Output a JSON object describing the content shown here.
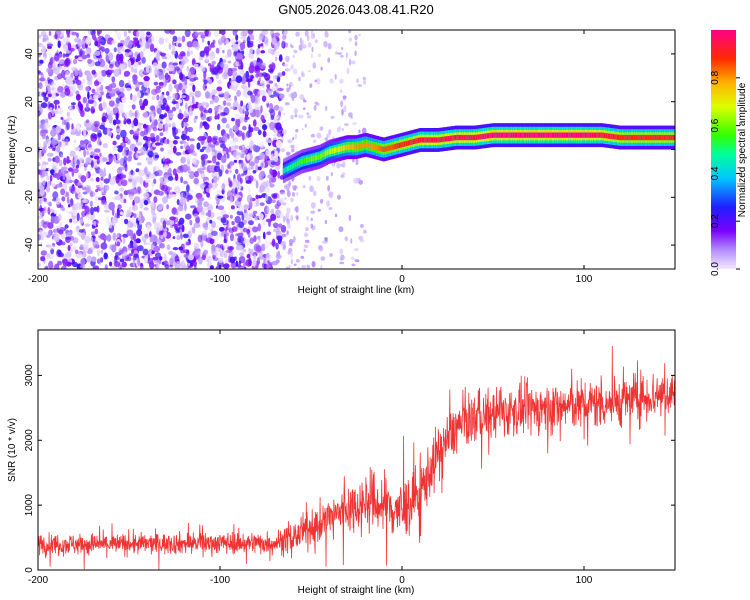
{
  "title": "GN05.2026.043.08.41.R20",
  "chart_data": [
    {
      "type": "heatmap",
      "xlabel": "Height of straight line (km)",
      "ylabel": "Frequency (Hz)",
      "xlim": [
        -200,
        150
      ],
      "ylim": [
        -50,
        50
      ],
      "xticks": [
        -200,
        -100,
        0,
        100
      ],
      "yticks": [
        -40,
        -20,
        0,
        20,
        40
      ],
      "colorbar": {
        "label": "Normalized spectral amplitude",
        "range": [
          0,
          1
        ],
        "ticks": [
          "0.0",
          "0.2",
          "0.4",
          "0.6",
          "0.8"
        ]
      },
      "noise_region_x": [
        -200,
        -65
      ],
      "scattered_region_x": [
        -65,
        -20
      ],
      "tone_track": {
        "x": [
          -65,
          -60,
          -55,
          -50,
          -45,
          -40,
          -35,
          -30,
          -25,
          -20,
          -15,
          -10,
          -5,
          0,
          5,
          10,
          20,
          30,
          40,
          50,
          60,
          80,
          100,
          110,
          120,
          130,
          140,
          150
        ],
        "freq": [
          -9,
          -7,
          -5,
          -4,
          -3,
          -1,
          0,
          1,
          1,
          2,
          1,
          0,
          1,
          2,
          3,
          4,
          4,
          5,
          5,
          6,
          6,
          6,
          6,
          6,
          5,
          5,
          5,
          5
        ],
        "amp": [
          0.45,
          0.5,
          0.55,
          0.6,
          0.6,
          0.65,
          0.7,
          0.75,
          0.8,
          0.8,
          0.8,
          0.85,
          0.85,
          0.9,
          0.9,
          0.95,
          0.95,
          0.95,
          0.95,
          1.0,
          1.0,
          1.0,
          1.0,
          0.95,
          0.9,
          0.9,
          0.9,
          0.9
        ]
      }
    },
    {
      "type": "line",
      "xlabel": "Height of straight line (km)",
      "ylabel": "SNR (10 * v/v)",
      "xlim": [
        -200,
        150
      ],
      "ylim": [
        0,
        3700
      ],
      "xticks": [
        -200,
        -100,
        0,
        100
      ],
      "yticks": [
        0,
        1000,
        2000,
        3000
      ],
      "color": "#ee3333",
      "series": [
        {
          "name": "SNR",
          "x": [
            -200,
            -150,
            -100,
            -70,
            -60,
            -50,
            -40,
            -30,
            -20,
            -10,
            0,
            10,
            20,
            30,
            40,
            50,
            60,
            80,
            100,
            120,
            140,
            150
          ],
          "mean": [
            400,
            400,
            420,
            420,
            500,
            650,
            800,
            950,
            1050,
            1000,
            900,
            1200,
            1800,
            2200,
            2350,
            2400,
            2450,
            2500,
            2550,
            2600,
            2700,
            2750
          ],
          "spread": [
            150,
            150,
            150,
            160,
            200,
            250,
            300,
            350,
            400,
            450,
            450,
            400,
            400,
            350,
            350,
            350,
            350,
            350,
            350,
            350,
            350,
            350
          ]
        }
      ]
    }
  ]
}
